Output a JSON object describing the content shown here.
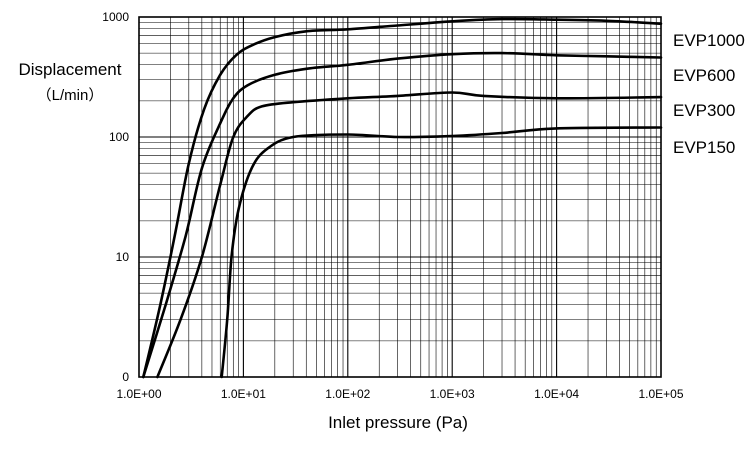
{
  "chart_data": {
    "type": "line",
    "title": "",
    "xlabel": "Inlet pressure (Pa)",
    "ylabel_lines": [
      "Displacement",
      "（L/min）"
    ],
    "x_scale": "log",
    "y_scale": "log",
    "xlim": [
      1,
      100000
    ],
    "ylim": [
      1,
      1000
    ],
    "grid": true,
    "legend_position": "right",
    "x_ticks": [
      {
        "value": 1,
        "label": "1.0E+00"
      },
      {
        "value": 10,
        "label": "1.0E+01"
      },
      {
        "value": 100,
        "label": "1.0E+02"
      },
      {
        "value": 1000,
        "label": "1.0E+03"
      },
      {
        "value": 10000,
        "label": "1.0E+04"
      },
      {
        "value": 100000,
        "label": "1.0E+05"
      }
    ],
    "y_ticks": [
      {
        "value": 1,
        "label": "0"
      },
      {
        "value": 10,
        "label": "10"
      },
      {
        "value": 100,
        "label": "100"
      },
      {
        "value": 1000,
        "label": "1000"
      }
    ],
    "series": [
      {
        "name": "EVP1000",
        "color": "#000000",
        "points": [
          [
            1.1,
            1
          ],
          [
            1.6,
            4
          ],
          [
            2.2,
            15
          ],
          [
            3,
            60
          ],
          [
            4.2,
            170
          ],
          [
            6,
            330
          ],
          [
            8.5,
            480
          ],
          [
            12,
            580
          ],
          [
            20,
            680
          ],
          [
            40,
            760
          ],
          [
            100,
            790
          ],
          [
            300,
            850
          ],
          [
            1000,
            920
          ],
          [
            3000,
            960
          ],
          [
            10000,
            950
          ],
          [
            30000,
            930
          ],
          [
            100000,
            880
          ]
        ]
      },
      {
        "name": "EVP600",
        "color": "#000000",
        "points": [
          [
            1.1,
            1
          ],
          [
            1.8,
            4
          ],
          [
            2.8,
            15
          ],
          [
            4,
            55
          ],
          [
            6,
            130
          ],
          [
            8,
            210
          ],
          [
            11,
            270
          ],
          [
            20,
            330
          ],
          [
            40,
            370
          ],
          [
            100,
            400
          ],
          [
            300,
            450
          ],
          [
            1000,
            490
          ],
          [
            3000,
            500
          ],
          [
            10000,
            480
          ],
          [
            30000,
            470
          ],
          [
            100000,
            460
          ]
        ]
      },
      {
        "name": "EVP300",
        "color": "#000000",
        "points": [
          [
            1.5,
            1
          ],
          [
            2.5,
            3
          ],
          [
            4,
            10
          ],
          [
            6,
            40
          ],
          [
            8,
            100
          ],
          [
            11,
            150
          ],
          [
            15,
            180
          ],
          [
            30,
            195
          ],
          [
            100,
            210
          ],
          [
            300,
            220
          ],
          [
            1000,
            235
          ],
          [
            2000,
            220
          ],
          [
            10000,
            210
          ],
          [
            100000,
            215
          ]
        ]
      },
      {
        "name": "EVP150",
        "color": "#000000",
        "points": [
          [
            6.2,
            1
          ],
          [
            7,
            3
          ],
          [
            7.7,
            10
          ],
          [
            9,
            25
          ],
          [
            12,
            55
          ],
          [
            17,
            80
          ],
          [
            30,
            100
          ],
          [
            100,
            105
          ],
          [
            300,
            100
          ],
          [
            1000,
            102
          ],
          [
            3000,
            108
          ],
          [
            10000,
            118
          ],
          [
            100000,
            120
          ]
        ]
      }
    ]
  }
}
